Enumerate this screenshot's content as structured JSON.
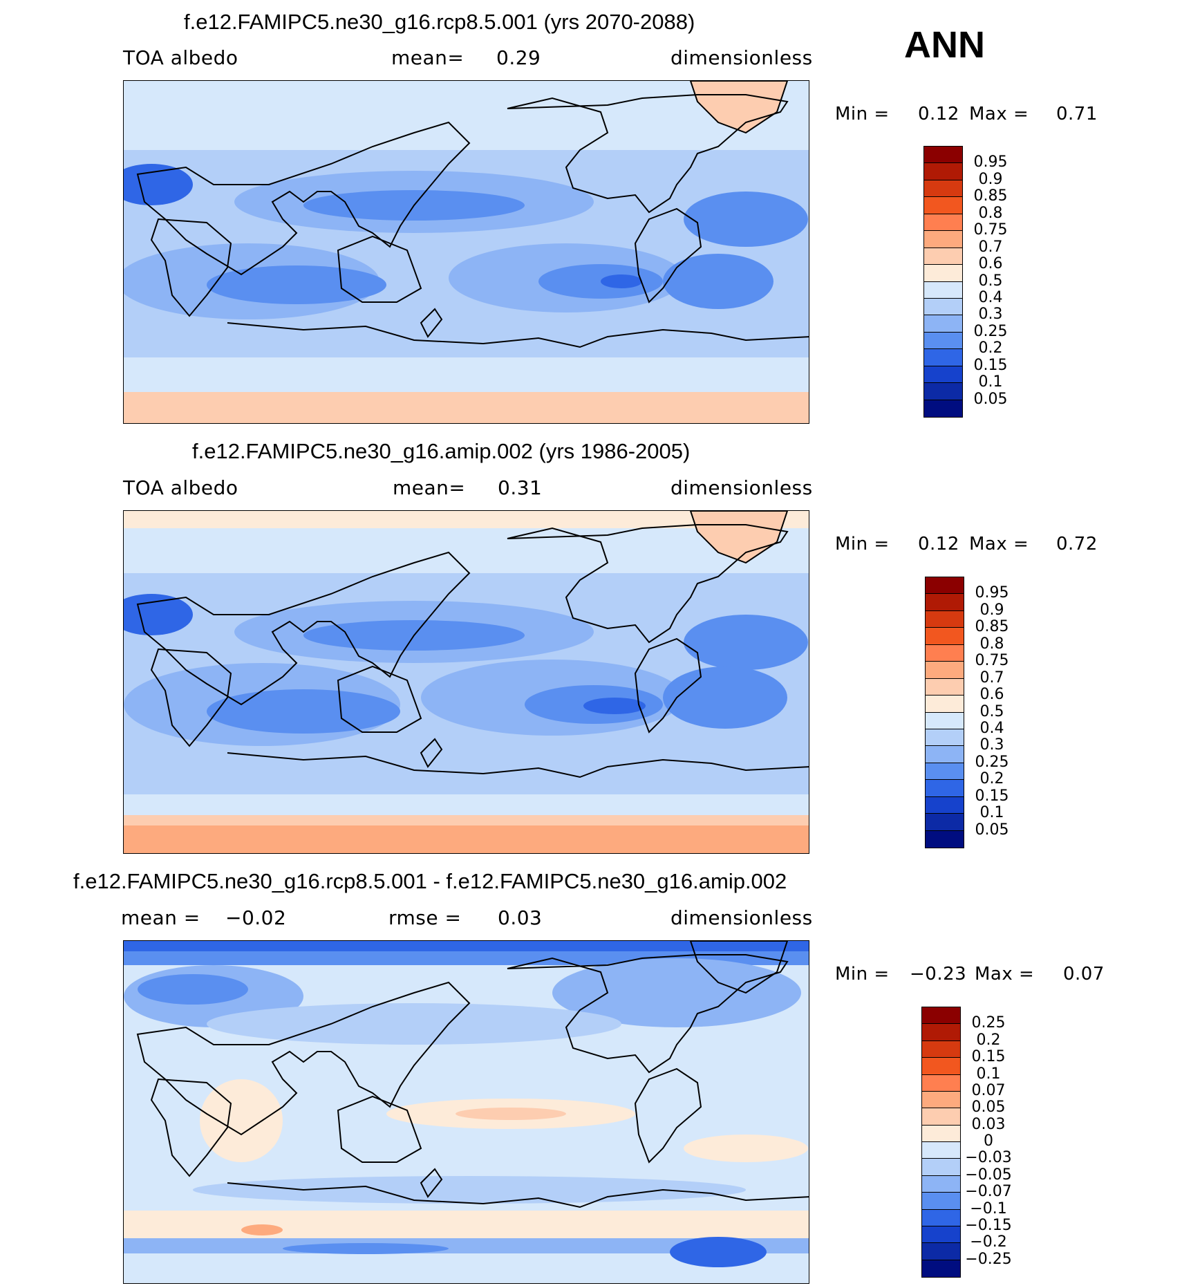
{
  "season": "ANN",
  "panels": [
    {
      "title": "f.e12.FAMIPC5.ne30_g16.rcp8.5.001 (yrs 2070-2088)",
      "left_label": "TOA albedo",
      "mid_label": "mean=",
      "mid_value": "0.29",
      "right_label": "dimensionless",
      "min_label": "Min =",
      "min_value": "0.12",
      "max_label": "Max =",
      "max_value": "0.71",
      "colorbar_labels": [
        "0.95",
        "0.9",
        "0.85",
        "0.8",
        "0.75",
        "0.7",
        "0.6",
        "0.5",
        "0.4",
        "0.3",
        "0.25",
        "0.2",
        "0.15",
        "0.1",
        "0.05"
      ],
      "colors": [
        "#8b0000",
        "#b01a05",
        "#d63a10",
        "#f2571f",
        "#ff7f50",
        "#fdaa7e",
        "#fdcdb0",
        "#fdebd9",
        "#d6e8fb",
        "#b3cff8",
        "#8db4f5",
        "#5a8ff0",
        "#2f66e6",
        "#1642cc",
        "#0c2aa6",
        "#000d80"
      ]
    },
    {
      "title": "f.e12.FAMIPC5.ne30_g16.amip.002 (yrs 1986-2005)",
      "left_label": "TOA albedo",
      "mid_label": "mean=",
      "mid_value": "0.31",
      "right_label": "dimensionless",
      "min_label": "Min =",
      "min_value": "0.12",
      "max_label": "Max =",
      "max_value": "0.72",
      "colorbar_labels": [
        "0.95",
        "0.9",
        "0.85",
        "0.8",
        "0.75",
        "0.7",
        "0.6",
        "0.5",
        "0.4",
        "0.3",
        "0.25",
        "0.2",
        "0.15",
        "0.1",
        "0.05"
      ],
      "colors": [
        "#8b0000",
        "#b01a05",
        "#d63a10",
        "#f2571f",
        "#ff7f50",
        "#fdaa7e",
        "#fdcdb0",
        "#fdebd9",
        "#d6e8fb",
        "#b3cff8",
        "#8db4f5",
        "#5a8ff0",
        "#2f66e6",
        "#1642cc",
        "#0c2aa6",
        "#000d80"
      ]
    },
    {
      "title": "f.e12.FAMIPC5.ne30_g16.rcp8.5.001 - f.e12.FAMIPC5.ne30_g16.amip.002",
      "left_label": "mean =",
      "left_value": "−0.02",
      "mid_label": "rmse =",
      "mid_value": "0.03",
      "right_label": "dimensionless",
      "min_label": "Min =",
      "min_value": "−0.23",
      "max_label": "Max =",
      "max_value": "0.07",
      "colorbar_labels": [
        "0.25",
        "0.2",
        "0.15",
        "0.1",
        "0.07",
        "0.05",
        "0.03",
        "0",
        "−0.03",
        "−0.05",
        "−0.07",
        "−0.1",
        "−0.15",
        "−0.2",
        "−0.25"
      ],
      "colors": [
        "#8b0000",
        "#b01a05",
        "#d63a10",
        "#f2571f",
        "#ff7f50",
        "#fdaa7e",
        "#fdcdb0",
        "#fdebd9",
        "#d6e8fb",
        "#b3cff8",
        "#8db4f5",
        "#5a8ff0",
        "#2f66e6",
        "#1642cc",
        "#0c2aa6",
        "#000d80"
      ]
    }
  ]
}
